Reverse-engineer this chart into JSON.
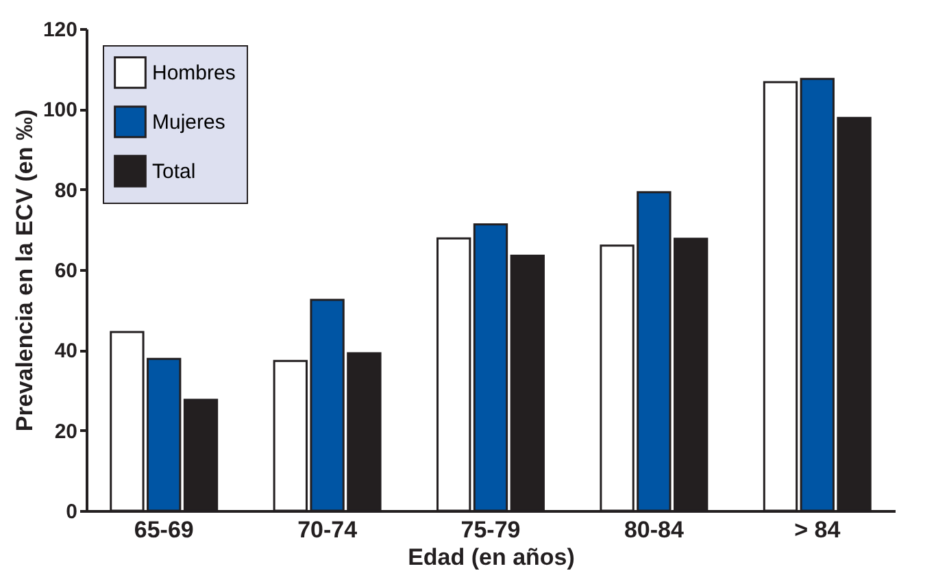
{
  "chart_data": {
    "type": "bar",
    "xlabel": "Edad (en años)",
    "ylabel": "Prevalencia en la ECV (en ‰)",
    "categories": [
      "65-69",
      "70-74",
      "75-79",
      "80-84",
      "> 84"
    ],
    "series": [
      {
        "name": "Hombres",
        "color": "#ffffff",
        "values": [
          44.5,
          37.3,
          67.8,
          66,
          106.7
        ]
      },
      {
        "name": "Mujeres",
        "color": "#0055a4",
        "values": [
          37.8,
          52.5,
          71.3,
          79.3,
          107.5
        ]
      },
      {
        "name": "Total",
        "color": "#231f20",
        "values": [
          27.6,
          39.2,
          63.5,
          67.7,
          97.8
        ]
      }
    ],
    "ylim": [
      0,
      120
    ],
    "yticks": [
      0,
      20,
      40,
      60,
      80,
      100,
      120
    ],
    "grid": false,
    "legend": "top left"
  }
}
